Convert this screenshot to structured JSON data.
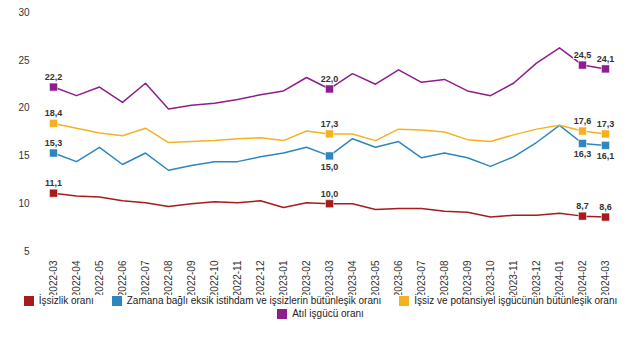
{
  "chart_data": {
    "type": "line",
    "categories": [
      "2022-03",
      "2022-04",
      "2022-05",
      "2022-06",
      "2022-07",
      "2022-08",
      "2022-09",
      "2022-10",
      "2022-11",
      "2022-12",
      "2023-01",
      "2023-02",
      "2023-03",
      "2023-04",
      "2023-05",
      "2023-06",
      "2023-07",
      "2023-08",
      "2023-09",
      "2023-10",
      "2023-11",
      "2023-12",
      "2024-01",
      "2024-02",
      "2024-03"
    ],
    "ylim": [
      5,
      30
    ],
    "yticks": [
      5,
      10,
      15,
      20,
      25,
      30
    ],
    "grid": false,
    "data_labels": true,
    "marker": "square",
    "legend": "bottom",
    "series": [
      {
        "name": "İşsizlik oranı",
        "color": "#a61c1c",
        "values": [
          11.1,
          10.8,
          10.7,
          10.3,
          10.1,
          9.7,
          10.0,
          10.2,
          10.1,
          10.3,
          9.6,
          10.1,
          10.0,
          10.0,
          9.4,
          9.5,
          9.5,
          9.2,
          9.1,
          8.6,
          8.8,
          8.8,
          9.0,
          8.7,
          8.6
        ],
        "value_labels": [
          "11,1",
          null,
          null,
          null,
          null,
          null,
          null,
          null,
          null,
          null,
          null,
          null,
          "10,0",
          null,
          null,
          null,
          null,
          null,
          null,
          null,
          null,
          null,
          null,
          "8,7",
          "8,6"
        ]
      },
      {
        "name": "Zamana bağlı eksik istihdam ve işsizlerin bütünleşik oranı",
        "color": "#2e86c1",
        "values": [
          15.3,
          14.4,
          15.9,
          14.1,
          15.3,
          13.5,
          14.0,
          14.4,
          14.4,
          14.9,
          15.3,
          15.9,
          15.0,
          16.8,
          15.9,
          16.5,
          14.8,
          15.3,
          14.8,
          13.9,
          14.9,
          16.4,
          18.2,
          16.3,
          16.1
        ],
        "value_labels": [
          "15,3",
          null,
          null,
          null,
          null,
          null,
          null,
          null,
          null,
          null,
          null,
          null,
          "15,0",
          null,
          null,
          null,
          null,
          null,
          null,
          null,
          null,
          null,
          null,
          "16,3",
          "16,1"
        ]
      },
      {
        "name": "İşsiz ve potansiyel işgücünün bütünleşik oranı",
        "color": "#f4b223",
        "values": [
          18.4,
          17.9,
          17.4,
          17.1,
          17.9,
          16.4,
          16.5,
          16.6,
          16.8,
          16.9,
          16.6,
          17.6,
          17.3,
          17.3,
          16.6,
          17.8,
          17.7,
          17.5,
          16.7,
          16.5,
          17.2,
          17.8,
          18.2,
          17.6,
          17.3
        ],
        "value_labels": [
          "18,4",
          null,
          null,
          null,
          null,
          null,
          null,
          null,
          null,
          null,
          null,
          null,
          "17,3",
          null,
          null,
          null,
          null,
          null,
          null,
          null,
          null,
          null,
          null,
          "17,6",
          "17,3"
        ]
      },
      {
        "name": "Atıl işgücü oranı",
        "color": "#8e1e8e",
        "values": [
          22.2,
          21.3,
          22.2,
          20.6,
          22.6,
          19.9,
          20.3,
          20.5,
          20.9,
          21.4,
          21.8,
          23.2,
          22.0,
          23.6,
          22.5,
          24.0,
          22.7,
          23.0,
          21.8,
          21.3,
          22.6,
          24.7,
          26.3,
          24.5,
          24.1
        ],
        "value_labels": [
          "22,2",
          null,
          null,
          null,
          null,
          null,
          null,
          null,
          null,
          null,
          null,
          null,
          "22,0",
          null,
          null,
          null,
          null,
          null,
          null,
          null,
          null,
          null,
          null,
          "24,5",
          "24,1"
        ]
      }
    ]
  }
}
